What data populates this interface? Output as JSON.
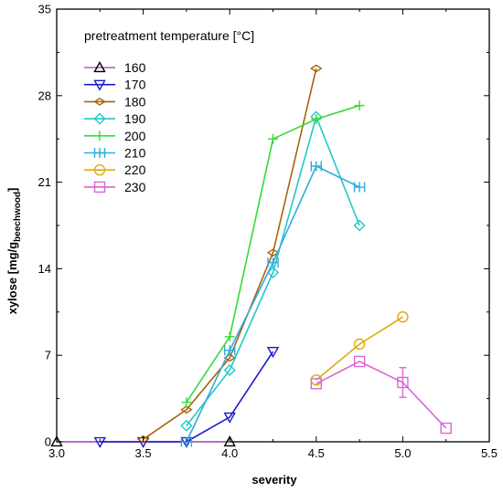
{
  "chart_data": {
    "type": "line",
    "xlabel": "severity",
    "ylabel_main": "xylose  [mg/g",
    "ylabel_sub": "beechwood",
    "ylabel_end": "]",
    "xlim": [
      3.0,
      5.5
    ],
    "ylim": [
      0,
      35
    ],
    "xticks": [
      "3.0",
      "3.5",
      "4.0",
      "4.5",
      "5.0",
      "5.5"
    ],
    "yticks": [
      "0",
      "7",
      "14",
      "21",
      "28",
      "35"
    ],
    "legend_title": "pretreatment temperature [°C]",
    "legend_position": "top-left",
    "grid": false,
    "series": [
      {
        "name": "160",
        "color": "#b05cc4",
        "marker": "triangle-up",
        "stroke": "#000000",
        "x": [
          3.0,
          4.0
        ],
        "y": [
          0,
          0
        ]
      },
      {
        "name": "170",
        "color": "#1a1acc",
        "marker": "triangle-down",
        "x": [
          3.25,
          3.5,
          3.75,
          4.0,
          4.25
        ],
        "y": [
          0,
          0,
          0,
          2.0,
          7.3
        ]
      },
      {
        "name": "180",
        "color": "#a8640c",
        "marker": "diamond-thin",
        "x": [
          3.5,
          3.75,
          4.0,
          4.25,
          4.5
        ],
        "y": [
          0.2,
          2.6,
          6.8,
          15.3,
          30.2
        ]
      },
      {
        "name": "190",
        "color": "#22c8c8",
        "marker": "diamond",
        "x": [
          3.75,
          4.0,
          4.25,
          4.5,
          4.75
        ],
        "y": [
          1.3,
          5.8,
          13.7,
          26.3,
          17.5
        ]
      },
      {
        "name": "200",
        "color": "#33dd33",
        "marker": "plus",
        "x": [
          3.75,
          4.0,
          4.25,
          4.5,
          4.75
        ],
        "y": [
          3.2,
          8.5,
          24.5,
          26.1,
          27.2
        ]
      },
      {
        "name": "210",
        "color": "#33aadd",
        "marker": "star",
        "x": [
          3.75,
          4.0,
          4.25,
          4.5,
          4.75
        ],
        "y": [
          0,
          7.4,
          14.5,
          22.3,
          20.6
        ]
      },
      {
        "name": "220",
        "color": "#ddaa11",
        "marker": "circle",
        "x": [
          4.5,
          4.75,
          5.0
        ],
        "y": [
          5.0,
          7.9,
          10.1
        ]
      },
      {
        "name": "230",
        "color": "#d966d6",
        "marker": "square",
        "x": [
          4.5,
          4.75,
          5.0,
          5.25
        ],
        "y": [
          4.7,
          6.5,
          4.8,
          1.1
        ],
        "errors": [
          0,
          0,
          1.2,
          0
        ]
      }
    ]
  }
}
